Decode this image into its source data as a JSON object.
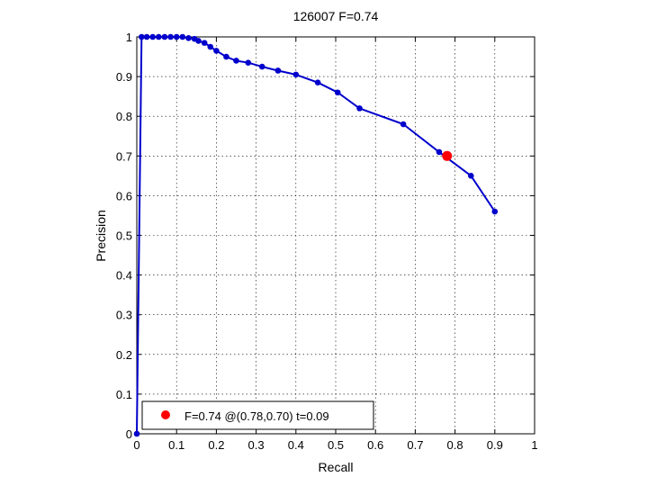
{
  "chart_data": {
    "type": "line",
    "title": "126007 F=0.74",
    "xlabel": "Recall",
    "ylabel": "Precision",
    "xlim": [
      0,
      1
    ],
    "ylim": [
      0,
      1
    ],
    "grid": true,
    "legend_position": "bottom-left",
    "x_tick_labels": [
      "0",
      "0.1",
      "0.2",
      "0.3",
      "0.4",
      "0.5",
      "0.6",
      "0.7",
      "0.8",
      "0.9",
      "1"
    ],
    "y_tick_labels": [
      "0",
      "0.1",
      "0.2",
      "0.3",
      "0.4",
      "0.5",
      "0.6",
      "0.7",
      "0.8",
      "0.9",
      "1"
    ],
    "series": [
      {
        "color": "#0000cc",
        "marker": "dot",
        "points": [
          {
            "x": 0.9,
            "y": 0.56
          },
          {
            "x": 0.84,
            "y": 0.65
          },
          {
            "x": 0.76,
            "y": 0.71
          },
          {
            "x": 0.67,
            "y": 0.78
          },
          {
            "x": 0.56,
            "y": 0.82
          },
          {
            "x": 0.505,
            "y": 0.86
          },
          {
            "x": 0.455,
            "y": 0.885
          },
          {
            "x": 0.4,
            "y": 0.905
          },
          {
            "x": 0.355,
            "y": 0.915
          },
          {
            "x": 0.315,
            "y": 0.925
          },
          {
            "x": 0.28,
            "y": 0.935
          },
          {
            "x": 0.25,
            "y": 0.94
          },
          {
            "x": 0.225,
            "y": 0.95
          },
          {
            "x": 0.2,
            "y": 0.965
          },
          {
            "x": 0.185,
            "y": 0.975
          },
          {
            "x": 0.17,
            "y": 0.985
          },
          {
            "x": 0.155,
            "y": 0.99
          },
          {
            "x": 0.145,
            "y": 0.995
          },
          {
            "x": 0.13,
            "y": 0.997
          },
          {
            "x": 0.115,
            "y": 1.0
          },
          {
            "x": 0.1,
            "y": 1.0
          },
          {
            "x": 0.085,
            "y": 1.0
          },
          {
            "x": 0.07,
            "y": 1.0
          },
          {
            "x": 0.055,
            "y": 1.0
          },
          {
            "x": 0.04,
            "y": 1.0
          },
          {
            "x": 0.025,
            "y": 1.0
          },
          {
            "x": 0.012,
            "y": 1.0
          },
          {
            "x": 0.0,
            "y": 0.0
          }
        ]
      }
    ],
    "highlight_point": {
      "x": 0.78,
      "y": 0.7,
      "color": "#ff0000"
    },
    "legend": {
      "label": "F=0.74 @(0.78,0.70) t=0.09",
      "marker_color": "#ff0000"
    }
  }
}
